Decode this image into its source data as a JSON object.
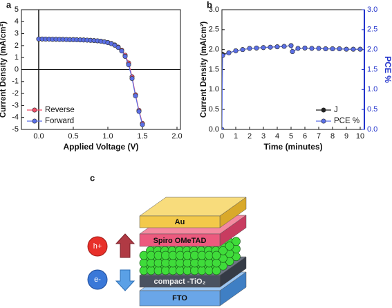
{
  "chart_data": [
    {
      "type": "line",
      "label": "a",
      "xlabel": "Applied Voltage (V)",
      "ylabel": "Current Density (mA/cm²)",
      "x": [
        0,
        0.05,
        0.1,
        0.15,
        0.2,
        0.25,
        0.3,
        0.35,
        0.4,
        0.45,
        0.5,
        0.55,
        0.6,
        0.65,
        0.7,
        0.75,
        0.8,
        0.85,
        0.9,
        0.95,
        1.0,
        1.05,
        1.1,
        1.15,
        1.2,
        1.25,
        1.3,
        1.35,
        1.4,
        1.45,
        1.5
      ],
      "series": [
        {
          "name": "Reverse",
          "color": "#f0506a",
          "values": [
            2.55,
            2.55,
            2.54,
            2.54,
            2.53,
            2.53,
            2.52,
            2.52,
            2.51,
            2.5,
            2.5,
            2.49,
            2.48,
            2.47,
            2.46,
            2.44,
            2.42,
            2.4,
            2.37,
            2.32,
            2.26,
            2.18,
            2.06,
            1.88,
            1.62,
            1.2,
            0.55,
            -0.6,
            -2.1,
            -3.4,
            -4.5
          ]
        },
        {
          "name": "Forward",
          "color": "#5a6fe6",
          "values": [
            2.55,
            2.55,
            2.54,
            2.54,
            2.53,
            2.53,
            2.52,
            2.52,
            2.51,
            2.5,
            2.5,
            2.49,
            2.48,
            2.47,
            2.46,
            2.44,
            2.42,
            2.4,
            2.36,
            2.31,
            2.25,
            2.16,
            2.03,
            1.84,
            1.55,
            1.1,
            0.4,
            -0.75,
            -2.2,
            -3.5,
            -4.6
          ]
        }
      ],
      "xlim": [
        -0.25,
        2.05
      ],
      "xticks": [
        {
          "value": 0,
          "label": "0.0"
        },
        {
          "value": 0.5,
          "label": "0.5"
        },
        {
          "value": 1,
          "label": "1.0"
        },
        {
          "value": 1.5,
          "label": "1.5"
        },
        {
          "value": 2,
          "label": "2.0"
        }
      ],
      "ylim": [
        -5,
        5
      ],
      "yticks": [
        -5,
        -4,
        -3,
        -2,
        -1,
        0,
        1,
        2,
        3,
        4,
        5
      ],
      "zero_lines": true,
      "legend": "lower left"
    },
    {
      "type": "line",
      "label": "b",
      "xlabel": "Time (minutes)",
      "ylabel": "Current Density (mA/cm²)",
      "y2label": "PCE %",
      "x": [
        0,
        0.05,
        0.5,
        1,
        1.5,
        2,
        2.5,
        3,
        3.5,
        4,
        4.5,
        5,
        5.1,
        5.5,
        6,
        6.5,
        7,
        7.5,
        8,
        8.5,
        9,
        9.5,
        10
      ],
      "series": [
        {
          "name": "J",
          "color": "#222222",
          "values": [
            1.85,
            1.88,
            1.92,
            1.97,
            2.0,
            2.03,
            2.04,
            2.05,
            2.06,
            2.07,
            2.08,
            2.1,
            1.95,
            2.03,
            2.04,
            2.03,
            2.03,
            2.02,
            2.02,
            2.02,
            2.01,
            2.01,
            2.01
          ]
        },
        {
          "name": "PCE %",
          "color": "#5a6fe6",
          "axis": "y2",
          "values": [
            0.0,
            1.85,
            1.92,
            1.97,
            2.0,
            2.03,
            2.04,
            2.05,
            2.06,
            2.07,
            2.08,
            2.1,
            1.95,
            2.03,
            2.04,
            2.03,
            2.03,
            2.02,
            2.02,
            2.02,
            2.01,
            2.01,
            2.01
          ]
        }
      ],
      "xlim": [
        0,
        10.3
      ],
      "xticks": [
        0,
        1,
        2,
        3,
        4,
        5,
        6,
        7,
        8,
        9,
        10
      ],
      "ylim": [
        0,
        3
      ],
      "yticks": [
        {
          "value": 0,
          "label": "0.0"
        },
        {
          "value": 0.5,
          "label": "0.5"
        },
        {
          "value": 1,
          "label": "1.0"
        },
        {
          "value": 1.5,
          "label": "1.5"
        },
        {
          "value": 2,
          "label": "2.0"
        },
        {
          "value": 2.5,
          "label": "2.5"
        },
        {
          "value": 3,
          "label": "3.0"
        }
      ],
      "y2lim": [
        0,
        3
      ],
      "y2ticks": [
        {
          "value": 0,
          "label": "0.0"
        },
        {
          "value": 0.5,
          "label": "0.5"
        },
        {
          "value": 1,
          "label": "1.0"
        },
        {
          "value": 1.5,
          "label": "1.5"
        },
        {
          "value": 2,
          "label": "2.0"
        },
        {
          "value": 2.5,
          "label": "2.5"
        },
        {
          "value": 3,
          "label": "3.0"
        }
      ],
      "y2color": "#2233cc",
      "legend": "lower right"
    }
  ],
  "diagram": {
    "label": "c",
    "layers": [
      "Au",
      "Spiro OMeTAD",
      "compact -TiO₂",
      "FTO"
    ],
    "carriers": [
      "h+",
      "e-"
    ]
  }
}
